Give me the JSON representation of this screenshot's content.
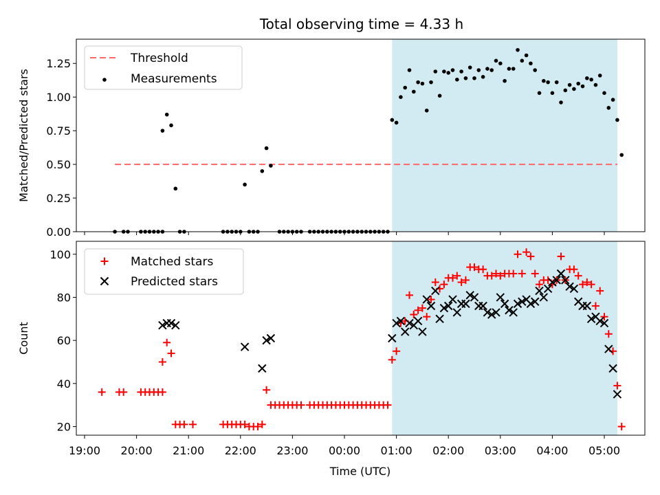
{
  "title": "Total observing time = 4.33 h",
  "colors": {
    "threshold": "#ff6666",
    "shade": "#add8e6",
    "matched": "#ff0000",
    "predicted": "#000000"
  },
  "chart_data": [
    {
      "type": "scatter",
      "ylabel": "Matched/Predicted stars",
      "ylim": [
        0,
        1.43
      ],
      "yticks": [
        "0.00",
        "0.25",
        "0.50",
        "0.75",
        "1.00",
        "1.25"
      ],
      "shaded_region": {
        "x_start": "00:55",
        "x_end": "05:15"
      },
      "legend": {
        "position": "upper-left",
        "threshold_label": "Threshold",
        "measurements_label": "Measurements"
      },
      "threshold": {
        "value": 0.5,
        "x_start": "19:35",
        "x_end": "05:15"
      },
      "measurements": [
        [
          "19:35",
          0
        ],
        [
          "19:45",
          0
        ],
        [
          "19:50",
          0
        ],
        [
          "20:05",
          0
        ],
        [
          "20:10",
          0
        ],
        [
          "20:15",
          0
        ],
        [
          "20:20",
          0
        ],
        [
          "20:25",
          0
        ],
        [
          "20:30",
          0
        ],
        [
          "20:30",
          0.75
        ],
        [
          "20:35",
          0.87
        ],
        [
          "20:40",
          0.79
        ],
        [
          "20:45",
          0.32
        ],
        [
          "20:50",
          0
        ],
        [
          "20:55",
          0
        ],
        [
          "21:40",
          0
        ],
        [
          "21:45",
          0
        ],
        [
          "21:50",
          0
        ],
        [
          "21:55",
          0
        ],
        [
          "22:00",
          0
        ],
        [
          "22:05",
          0.35
        ],
        [
          "22:10",
          0
        ],
        [
          "22:15",
          0
        ],
        [
          "22:20",
          0
        ],
        [
          "22:25",
          0.45
        ],
        [
          "22:30",
          0.62
        ],
        [
          "22:35",
          0.49
        ],
        [
          "22:45",
          0
        ],
        [
          "22:50",
          0
        ],
        [
          "22:55",
          0
        ],
        [
          "23:00",
          0
        ],
        [
          "23:05",
          0
        ],
        [
          "23:10",
          0
        ],
        [
          "23:20",
          0
        ],
        [
          "23:25",
          0
        ],
        [
          "23:30",
          0
        ],
        [
          "23:35",
          0
        ],
        [
          "23:40",
          0
        ],
        [
          "23:45",
          0
        ],
        [
          "23:50",
          0
        ],
        [
          "23:55",
          0
        ],
        [
          "00:00",
          0
        ],
        [
          "00:05",
          0
        ],
        [
          "00:10",
          0
        ],
        [
          "00:15",
          0
        ],
        [
          "00:20",
          0
        ],
        [
          "00:25",
          0
        ],
        [
          "00:30",
          0
        ],
        [
          "00:35",
          0
        ],
        [
          "00:40",
          0
        ],
        [
          "00:45",
          0
        ],
        [
          "00:50",
          0
        ],
        [
          "00:55",
          0.83
        ],
        [
          "01:00",
          0.81
        ],
        [
          "01:05",
          1.0
        ],
        [
          "01:10",
          1.07
        ],
        [
          "01:15",
          1.2
        ],
        [
          "01:20",
          1.04
        ],
        [
          "01:25",
          1.11
        ],
        [
          "01:30",
          1.1
        ],
        [
          "01:35",
          0.9
        ],
        [
          "01:40",
          1.11
        ],
        [
          "01:45",
          1.19
        ],
        [
          "01:50",
          1.01
        ],
        [
          "01:55",
          1.19
        ],
        [
          "02:00",
          1.18
        ],
        [
          "02:05",
          1.2
        ],
        [
          "02:10",
          1.13
        ],
        [
          "02:15",
          1.19
        ],
        [
          "02:20",
          1.14
        ],
        [
          "02:25",
          1.22
        ],
        [
          "02:30",
          1.14
        ],
        [
          "02:35",
          1.2
        ],
        [
          "02:40",
          1.15
        ],
        [
          "02:45",
          1.21
        ],
        [
          "02:50",
          1.2
        ],
        [
          "02:55",
          1.27
        ],
        [
          "03:00",
          1.25
        ],
        [
          "03:05",
          1.12
        ],
        [
          "03:10",
          1.21
        ],
        [
          "03:15",
          1.21
        ],
        [
          "03:20",
          1.35
        ],
        [
          "03:25",
          1.27
        ],
        [
          "03:30",
          1.31
        ],
        [
          "03:35",
          1.25
        ],
        [
          "03:40",
          1.2
        ],
        [
          "03:45",
          1.03
        ],
        [
          "03:50",
          1.12
        ],
        [
          "03:55",
          1.11
        ],
        [
          "04:00",
          1.03
        ],
        [
          "04:05",
          1.11
        ],
        [
          "04:10",
          0.96
        ],
        [
          "04:15",
          1.05
        ],
        [
          "04:20",
          1.09
        ],
        [
          "04:25",
          1.06
        ],
        [
          "04:30",
          1.1
        ],
        [
          "04:35",
          1.08
        ],
        [
          "04:40",
          1.14
        ],
        [
          "04:45",
          1.13
        ],
        [
          "04:50",
          1.09
        ],
        [
          "04:55",
          1.16
        ],
        [
          "05:00",
          1.03
        ],
        [
          "05:05",
          0.92
        ],
        [
          "05:10",
          0.98
        ],
        [
          "05:15",
          0.83
        ],
        [
          "05:20",
          0.57
        ]
      ]
    },
    {
      "type": "scatter",
      "ylabel": "Count",
      "xlabel": "Time (UTC)",
      "ylim": [
        16,
        106
      ],
      "yticks": [
        "20",
        "40",
        "60",
        "80",
        "100"
      ],
      "xticks": [
        "19:00",
        "20:00",
        "21:00",
        "22:00",
        "23:00",
        "00:00",
        "01:00",
        "02:00",
        "03:00",
        "04:00",
        "05:00"
      ],
      "shaded_region": {
        "x_start": "00:55",
        "x_end": "05:15"
      },
      "legend": {
        "position": "upper-left"
      },
      "series": [
        {
          "name": "Matched stars",
          "marker": "plus",
          "points": [
            [
              "19:20",
              36
            ],
            [
              "19:40",
              36
            ],
            [
              "19:45",
              36
            ],
            [
              "20:05",
              36
            ],
            [
              "20:10",
              36
            ],
            [
              "20:15",
              36
            ],
            [
              "20:20",
              36
            ],
            [
              "20:25",
              36
            ],
            [
              "20:30",
              36
            ],
            [
              "20:30",
              50
            ],
            [
              "20:35",
              59
            ],
            [
              "20:40",
              54
            ],
            [
              "20:45",
              21
            ],
            [
              "20:50",
              21
            ],
            [
              "20:55",
              21
            ],
            [
              "21:05",
              21
            ],
            [
              "21:40",
              21
            ],
            [
              "21:45",
              21
            ],
            [
              "21:50",
              21
            ],
            [
              "21:55",
              21
            ],
            [
              "22:00",
              21
            ],
            [
              "22:05",
              21
            ],
            [
              "22:10",
              20
            ],
            [
              "22:15",
              20
            ],
            [
              "22:20",
              20
            ],
            [
              "22:25",
              21
            ],
            [
              "22:30",
              37
            ],
            [
              "22:35",
              30
            ],
            [
              "22:40",
              30
            ],
            [
              "22:45",
              30
            ],
            [
              "22:50",
              30
            ],
            [
              "22:55",
              30
            ],
            [
              "23:00",
              30
            ],
            [
              "23:05",
              30
            ],
            [
              "23:10",
              30
            ],
            [
              "23:20",
              30
            ],
            [
              "23:25",
              30
            ],
            [
              "23:30",
              30
            ],
            [
              "23:35",
              30
            ],
            [
              "23:40",
              30
            ],
            [
              "23:45",
              30
            ],
            [
              "23:50",
              30
            ],
            [
              "23:55",
              30
            ],
            [
              "00:00",
              30
            ],
            [
              "00:05",
              30
            ],
            [
              "00:10",
              30
            ],
            [
              "00:15",
              30
            ],
            [
              "00:20",
              30
            ],
            [
              "00:25",
              30
            ],
            [
              "00:30",
              30
            ],
            [
              "00:35",
              30
            ],
            [
              "00:40",
              30
            ],
            [
              "00:45",
              30
            ],
            [
              "00:50",
              30
            ],
            [
              "00:55",
              51
            ],
            [
              "01:00",
              55
            ],
            [
              "01:05",
              68
            ],
            [
              "01:10",
              69
            ],
            [
              "01:15",
              81
            ],
            [
              "01:20",
              72
            ],
            [
              "01:25",
              74
            ],
            [
              "01:30",
              75
            ],
            [
              "01:35",
              71
            ],
            [
              "01:40",
              79
            ],
            [
              "01:45",
              87
            ],
            [
              "01:50",
              84
            ],
            [
              "01:55",
              86
            ],
            [
              "02:00",
              89
            ],
            [
              "02:05",
              89
            ],
            [
              "02:10",
              90
            ],
            [
              "02:15",
              87
            ],
            [
              "02:20",
              88
            ],
            [
              "02:25",
              94
            ],
            [
              "02:30",
              94
            ],
            [
              "02:35",
              93
            ],
            [
              "02:40",
              93
            ],
            [
              "02:45",
              90
            ],
            [
              "02:50",
              90
            ],
            [
              "02:55",
              91
            ],
            [
              "03:00",
              90
            ],
            [
              "03:05",
              91
            ],
            [
              "03:10",
              91
            ],
            [
              "03:15",
              91
            ],
            [
              "03:20",
              100
            ],
            [
              "03:25",
              91
            ],
            [
              "03:30",
              101
            ],
            [
              "03:35",
              99
            ],
            [
              "03:40",
              91
            ],
            [
              "03:45",
              86
            ],
            [
              "03:50",
              88
            ],
            [
              "03:55",
              88
            ],
            [
              "04:00",
              86
            ],
            [
              "04:05",
              88
            ],
            [
              "04:10",
              99
            ],
            [
              "04:15",
              88
            ],
            [
              "04:20",
              93
            ],
            [
              "04:25",
              93
            ],
            [
              "04:30",
              90
            ],
            [
              "04:35",
              86
            ],
            [
              "04:40",
              87
            ],
            [
              "04:45",
              86
            ],
            [
              "04:50",
              76
            ],
            [
              "04:55",
              83
            ],
            [
              "05:00",
              71
            ],
            [
              "05:05",
              63
            ],
            [
              "05:10",
              55
            ],
            [
              "05:15",
              39
            ],
            [
              "05:20",
              20
            ]
          ]
        },
        {
          "name": "Predicted stars",
          "marker": "x",
          "points": [
            [
              "20:30",
              67
            ],
            [
              "20:35",
              68
            ],
            [
              "20:40",
              68
            ],
            [
              "20:45",
              67
            ],
            [
              "22:05",
              57
            ],
            [
              "22:25",
              47
            ],
            [
              "22:30",
              60
            ],
            [
              "22:35",
              61
            ],
            [
              "00:55",
              61
            ],
            [
              "01:00",
              68
            ],
            [
              "01:05",
              69
            ],
            [
              "01:10",
              64
            ],
            [
              "01:15",
              68
            ],
            [
              "01:20",
              67
            ],
            [
              "01:25",
              69
            ],
            [
              "01:30",
              64
            ],
            [
              "01:35",
              79
            ],
            [
              "01:40",
              76
            ],
            [
              "01:45",
              83
            ],
            [
              "01:50",
              70
            ],
            [
              "01:55",
              75
            ],
            [
              "02:00",
              76
            ],
            [
              "02:05",
              79
            ],
            [
              "02:10",
              73
            ],
            [
              "02:15",
              77
            ],
            [
              "02:20",
              77
            ],
            [
              "02:25",
              81
            ],
            [
              "02:30",
              80
            ],
            [
              "02:35",
              76
            ],
            [
              "02:40",
              76
            ],
            [
              "02:45",
              73
            ],
            [
              "02:50",
              72
            ],
            [
              "02:55",
              73
            ],
            [
              "03:00",
              80
            ],
            [
              "03:05",
              77
            ],
            [
              "03:10",
              74
            ],
            [
              "03:15",
              73
            ],
            [
              "03:20",
              77
            ],
            [
              "03:25",
              78
            ],
            [
              "03:30",
              79
            ],
            [
              "03:35",
              77
            ],
            [
              "03:40",
              78
            ],
            [
              "03:45",
              83
            ],
            [
              "03:50",
              80
            ],
            [
              "03:55",
              84
            ],
            [
              "04:00",
              87
            ],
            [
              "04:05",
              88
            ],
            [
              "04:10",
              91
            ],
            [
              "04:15",
              88
            ],
            [
              "04:20",
              85
            ],
            [
              "04:25",
              84
            ],
            [
              "04:30",
              78
            ],
            [
              "04:35",
              76
            ],
            [
              "04:40",
              76
            ],
            [
              "04:45",
              70
            ],
            [
              "04:50",
              71
            ],
            [
              "04:55",
              69
            ],
            [
              "05:00",
              68
            ],
            [
              "05:05",
              56
            ],
            [
              "05:10",
              47
            ],
            [
              "05:15",
              35
            ]
          ]
        }
      ]
    }
  ]
}
